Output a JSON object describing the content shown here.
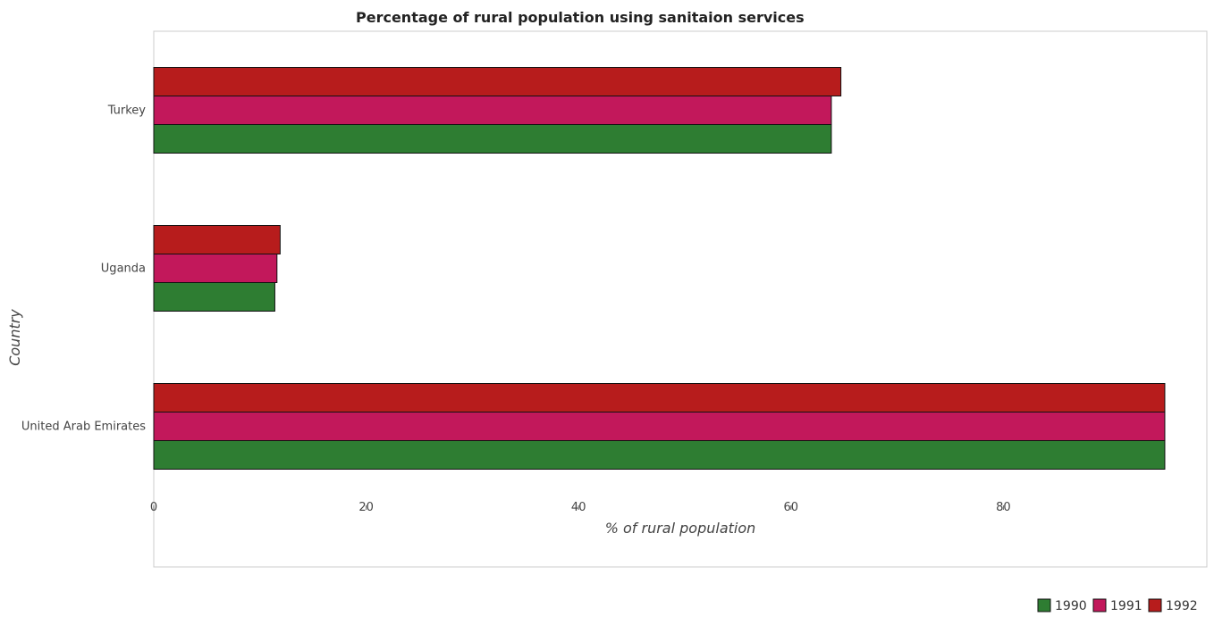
{
  "chart_data": {
    "type": "bar",
    "orientation": "horizontal",
    "title": "Percentage of rural population using sanitaion services",
    "xlabel": "% of rural population",
    "ylabel": "Country",
    "categories": [
      "Turkey",
      "Uganda",
      "United Arab Emirates"
    ],
    "series": [
      {
        "name": "1990",
        "color": "#2e7d32",
        "values": [
          63.8,
          11.4,
          95.2
        ]
      },
      {
        "name": "1991",
        "color": "#c2185b",
        "values": [
          63.8,
          11.6,
          95.2
        ]
      },
      {
        "name": "1992",
        "color": "#b71c1c",
        "values": [
          64.7,
          11.9,
          95.2
        ]
      }
    ],
    "xlim": [
      0,
      100
    ],
    "xticks": [
      0,
      20,
      40,
      60,
      80
    ],
    "grid": false,
    "legend_position": "bottom-right"
  }
}
